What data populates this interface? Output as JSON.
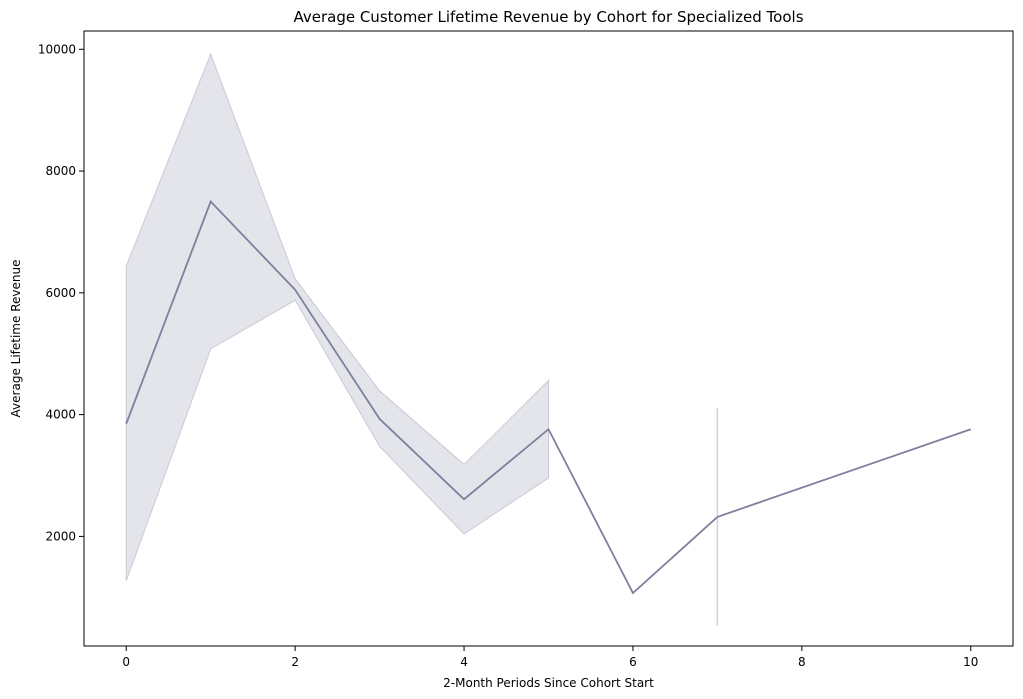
{
  "chart_data": {
    "type": "line",
    "title": "Average Customer Lifetime Revenue by Cohort for Specialized Tools",
    "xlabel": "2-Month Periods Since Cohort Start",
    "ylabel": "Average Lifetime Revenue",
    "xlim": [
      -0.5,
      10.5
    ],
    "ylim": [
      200,
      10300
    ],
    "xticks": [
      0,
      2,
      4,
      6,
      8,
      10
    ],
    "yticks": [
      2000,
      4000,
      6000,
      8000,
      10000
    ],
    "grid": false,
    "legend": "none",
    "colors": {
      "line": "#7f7f9e",
      "band": "#c9c9d7"
    },
    "series": [
      {
        "x": [
          0,
          1,
          2,
          3,
          4,
          5,
          6,
          7,
          10
        ],
        "y": [
          3850,
          7500,
          6050,
          3930,
          2610,
          3760,
          1070,
          2320,
          3760
        ],
        "ci_low": [
          1270,
          5080,
          5880,
          3480,
          2040,
          2960,
          null,
          530,
          null
        ],
        "ci_high": [
          6440,
          9920,
          6230,
          4390,
          3180,
          4560,
          null,
          4110,
          null
        ]
      }
    ]
  }
}
